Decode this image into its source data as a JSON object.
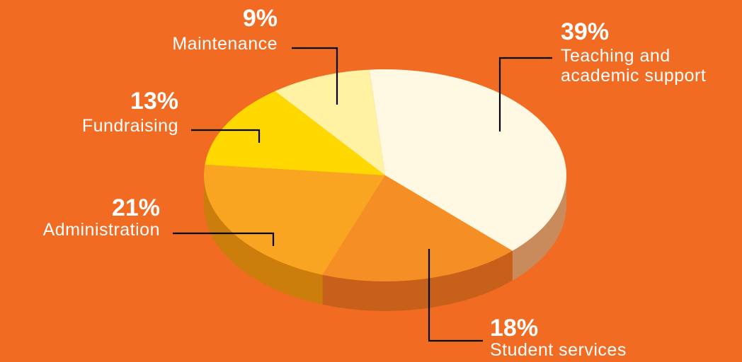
{
  "chart_data": {
    "type": "pie",
    "style": "3d",
    "slices": [
      {
        "label": "Teaching and academic support",
        "label_lines": [
          "Teaching and",
          "academic support"
        ],
        "percent_text": "39%",
        "value": 39,
        "color": "#FFF9E3",
        "side_color": "#C98B5B"
      },
      {
        "label": "Student services",
        "label_lines": [
          "Student services"
        ],
        "percent_text": "18%",
        "value": 18,
        "color": "#F58F25",
        "side_color": "#C7601A"
      },
      {
        "label": "Administration",
        "label_lines": [
          "Administration"
        ],
        "percent_text": "21%",
        "value": 21,
        "color": "#F9A521",
        "side_color": "#CB7E0C"
      },
      {
        "label": "Fundraising",
        "label_lines": [
          "Fundraising"
        ],
        "percent_text": "13%",
        "value": 13,
        "color": "#FFD800",
        "side_color": "#C8A800"
      },
      {
        "label": "Maintenance",
        "label_lines": [
          "Maintenance"
        ],
        "percent_text": "9%",
        "value": 9,
        "color": "#FFF3A3",
        "side_color": "#D4C27A"
      }
    ]
  },
  "colors": {
    "background": "#F26B22",
    "text": "#FFFFFF",
    "leader_line": "#000000"
  }
}
